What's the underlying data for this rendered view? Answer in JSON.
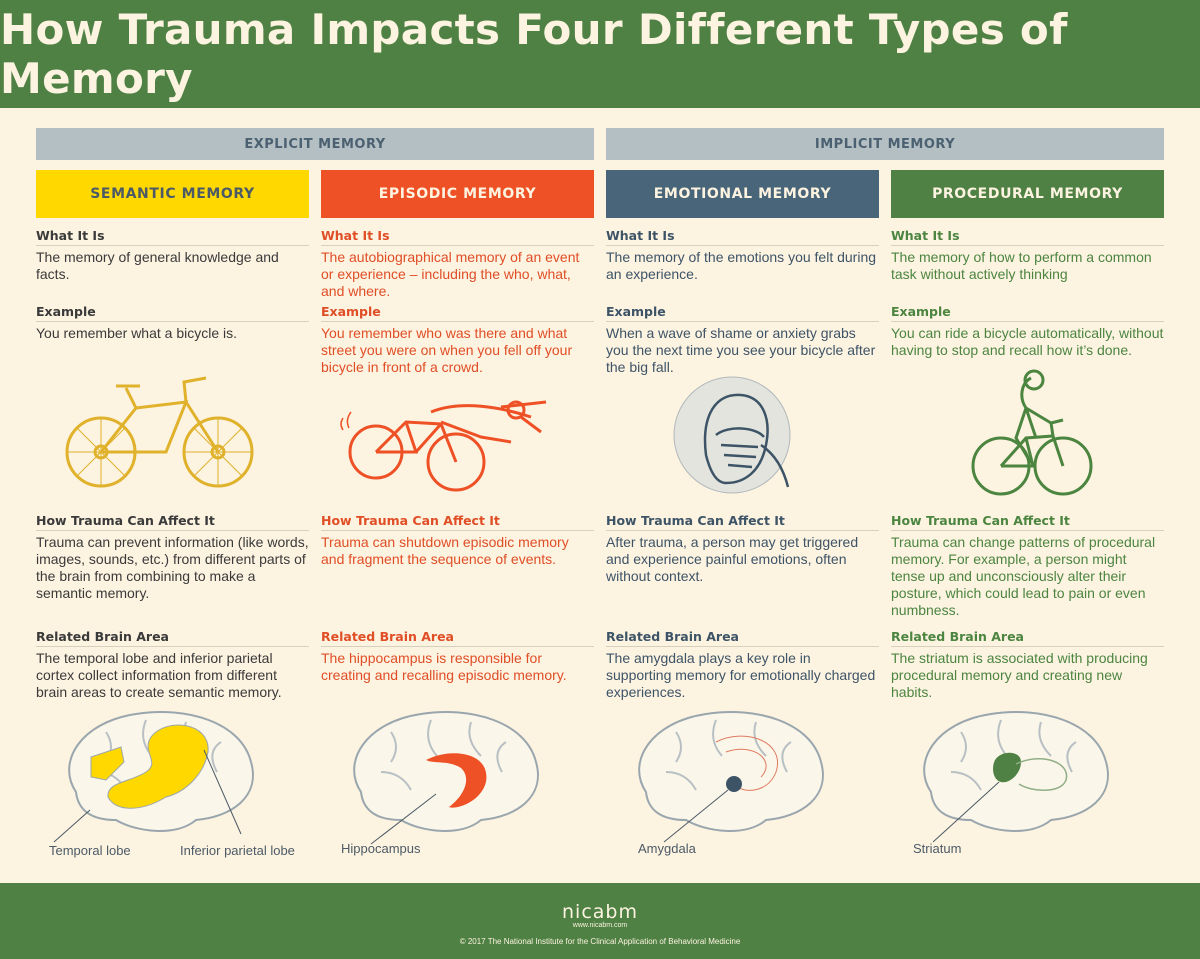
{
  "title": "How Trauma Impacts Four Different Types of Memory",
  "groups": {
    "explicit": "EXPLICIT MEMORY",
    "implicit": "IMPLICIT MEMORY"
  },
  "columns": [
    {
      "heading": "SEMANTIC MEMORY",
      "what_h": "What It Is",
      "what_t": "The memory of general knowledge and facts.",
      "ex_h": "Example",
      "ex_t": "You remember what a bicycle is.",
      "affect_h": "How Trauma Can Affect It",
      "affect_t": "Trauma can prevent information (like words, images, sounds, etc.) from different parts of the brain from combining to make a semantic memory.",
      "brain_h": "Related Brain Area",
      "brain_t": "The temporal lobe and inferior parietal cortex collect information from different brain areas to create semantic memory.",
      "labels": [
        "Temporal lobe",
        "Inferior parietal lobe"
      ],
      "color": "#ffd800"
    },
    {
      "heading": "EPISODIC MEMORY",
      "what_h": "What It Is",
      "what_t": "The autobiographical memory of an event or experience – including the who, what, and where.",
      "ex_h": "Example",
      "ex_t": "You remember who was there and what street you were on when you fell off your bicycle in front of a crowd.",
      "affect_h": "How Trauma Can Affect It",
      "affect_t": "Trauma can shutdown episodic memory and fragment the sequence of events.",
      "brain_h": "Related Brain Area",
      "brain_t": "The hippocampus is responsible for creating and recalling episodic memory.",
      "labels": [
        "Hippocampus"
      ],
      "color": "#ee5125"
    },
    {
      "heading": "EMOTIONAL MEMORY",
      "what_h": "What It Is",
      "what_t": "The memory of the emotions you felt during an experience.",
      "ex_h": "Example",
      "ex_t": "When a wave of shame or anxiety grabs you the next time you see your bicycle after the big fall.",
      "affect_h": "How Trauma Can Affect It",
      "affect_t": "After trauma, a person may get triggered and experience painful emotions, often without context.",
      "brain_h": "Related Brain Area",
      "brain_t": "The amygdala plays a key role in supporting memory for emotionally charged experiences.",
      "labels": [
        "Amygdala"
      ],
      "color": "#496579"
    },
    {
      "heading": "PROCEDURAL MEMORY",
      "what_h": "What It Is",
      "what_t": "The memory of how to perform a common task without actively thinking",
      "ex_h": "Example",
      "ex_t": "You can ride a bicycle automatically, without having to stop and recall how it’s done.",
      "affect_h": "How Trauma Can Affect It",
      "affect_t": "Trauma can change patterns of procedural memory. For example, a person might tense up and unconsciously alter their posture, which could lead to pain or even numbness.",
      "brain_h": "Related Brain Area",
      "brain_t": "The striatum is associated with producing procedural memory and creating new habits.",
      "labels": [
        "Striatum"
      ],
      "color": "#4e8143"
    }
  ],
  "footer": {
    "logo": "nicabm",
    "url": "www.nicabm.com",
    "copyright": "©  2017  The National Institute for the Clinical Application of Behavioral Medicine"
  }
}
